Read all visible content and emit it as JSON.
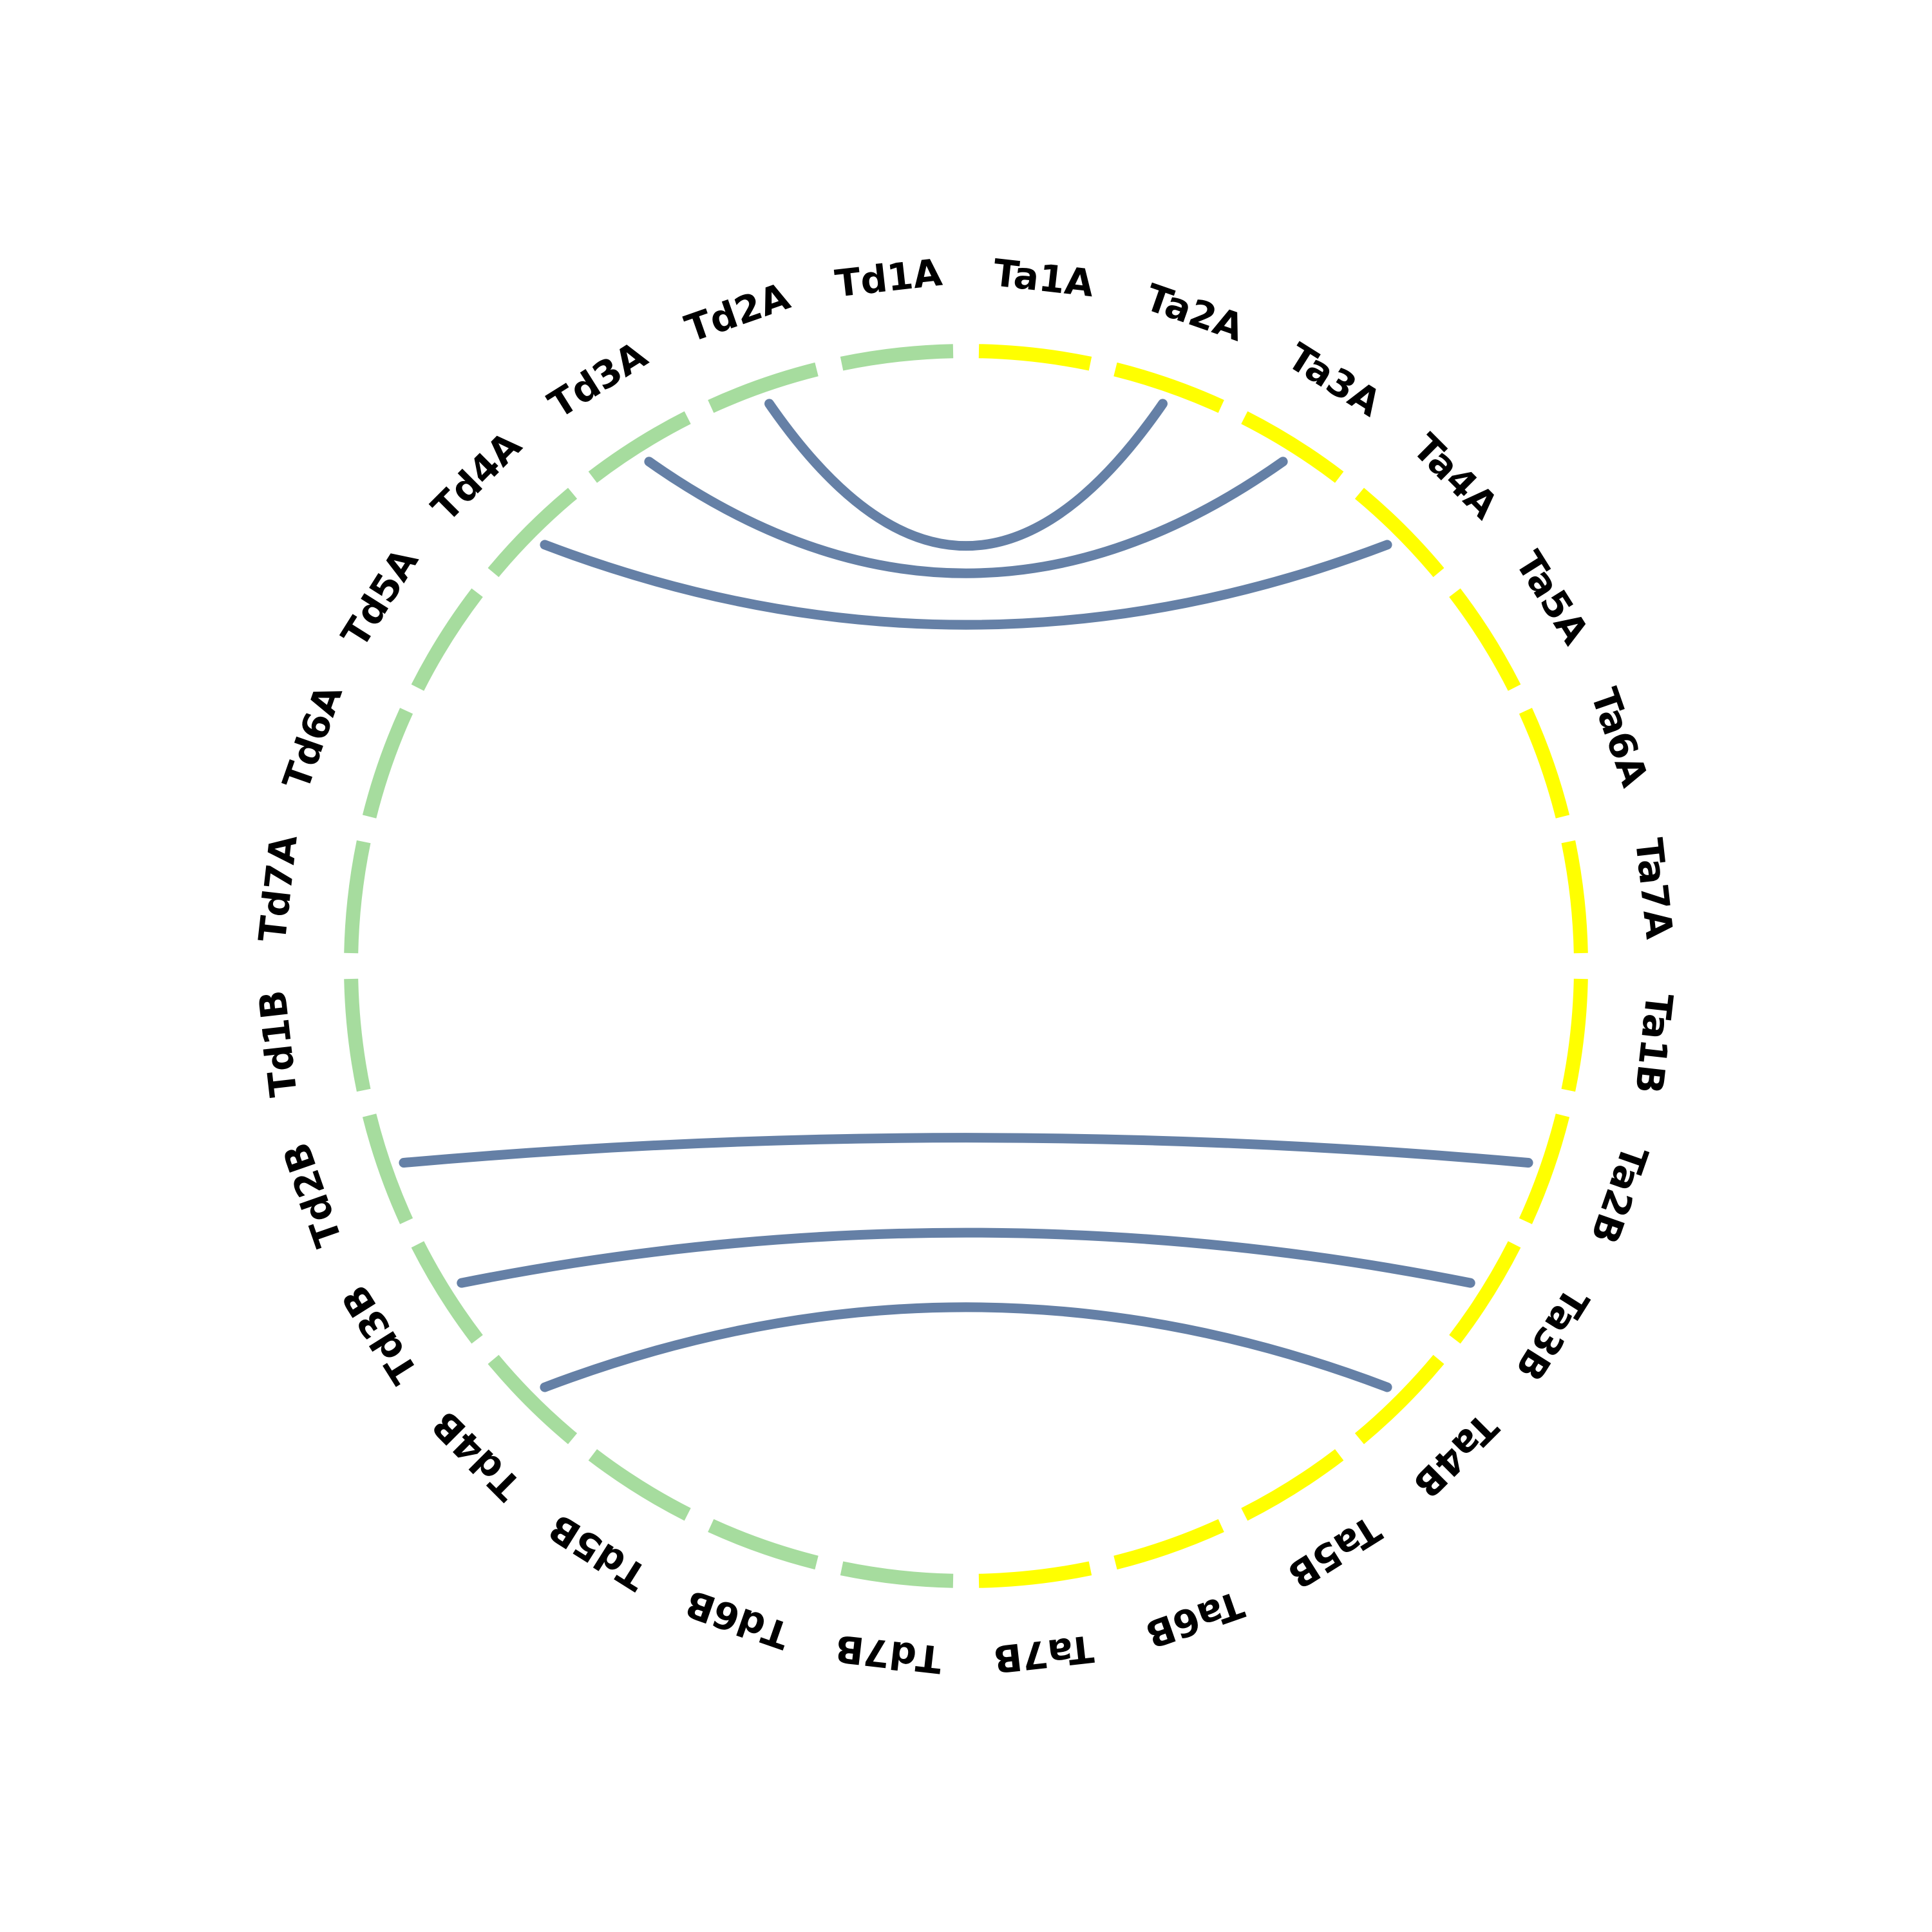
{
  "colors": {
    "td_segment": "#A6DC9E",
    "ta_segment": "#FFFF00",
    "link": "#6580A6",
    "label": "#000000",
    "background": "#FFFFFF"
  },
  "segments": [
    {
      "label": "Ta1A",
      "group": "ta"
    },
    {
      "label": "Ta2A",
      "group": "ta"
    },
    {
      "label": "Ta3A",
      "group": "ta"
    },
    {
      "label": "Ta4A",
      "group": "ta"
    },
    {
      "label": "Ta5A",
      "group": "ta"
    },
    {
      "label": "Ta6A",
      "group": "ta"
    },
    {
      "label": "Ta7A",
      "group": "ta"
    },
    {
      "label": "Ta1B",
      "group": "ta"
    },
    {
      "label": "Ta2B",
      "group": "ta"
    },
    {
      "label": "Ta3B",
      "group": "ta"
    },
    {
      "label": "Ta4B",
      "group": "ta"
    },
    {
      "label": "Ta5B",
      "group": "ta"
    },
    {
      "label": "Ta6B",
      "group": "ta"
    },
    {
      "label": "Ta7B",
      "group": "ta"
    },
    {
      "label": "Td7B",
      "group": "td"
    },
    {
      "label": "Td6B",
      "group": "td"
    },
    {
      "label": "Td5B",
      "group": "td"
    },
    {
      "label": "Td4B",
      "group": "td"
    },
    {
      "label": "Td3B",
      "group": "td"
    },
    {
      "label": "Td2B",
      "group": "td"
    },
    {
      "label": "Td1B",
      "group": "td"
    },
    {
      "label": "Td7A",
      "group": "td"
    },
    {
      "label": "Td6A",
      "group": "td"
    },
    {
      "label": "Td5A",
      "group": "td"
    },
    {
      "label": "Td4A",
      "group": "td"
    },
    {
      "label": "Td3A",
      "group": "td"
    },
    {
      "label": "Td2A",
      "group": "td"
    },
    {
      "label": "Td1A",
      "group": "td"
    }
  ],
  "links": [
    {
      "from": "Td2A",
      "to": "Ta2A"
    },
    {
      "from": "Td3A",
      "to": "Ta3A"
    },
    {
      "from": "Td4A",
      "to": "Ta4A"
    },
    {
      "from": "Td2B",
      "to": "Ta2B"
    },
    {
      "from": "Td3B",
      "to": "Ta3B"
    },
    {
      "from": "Td4B",
      "to": "Ta4B"
    }
  ]
}
